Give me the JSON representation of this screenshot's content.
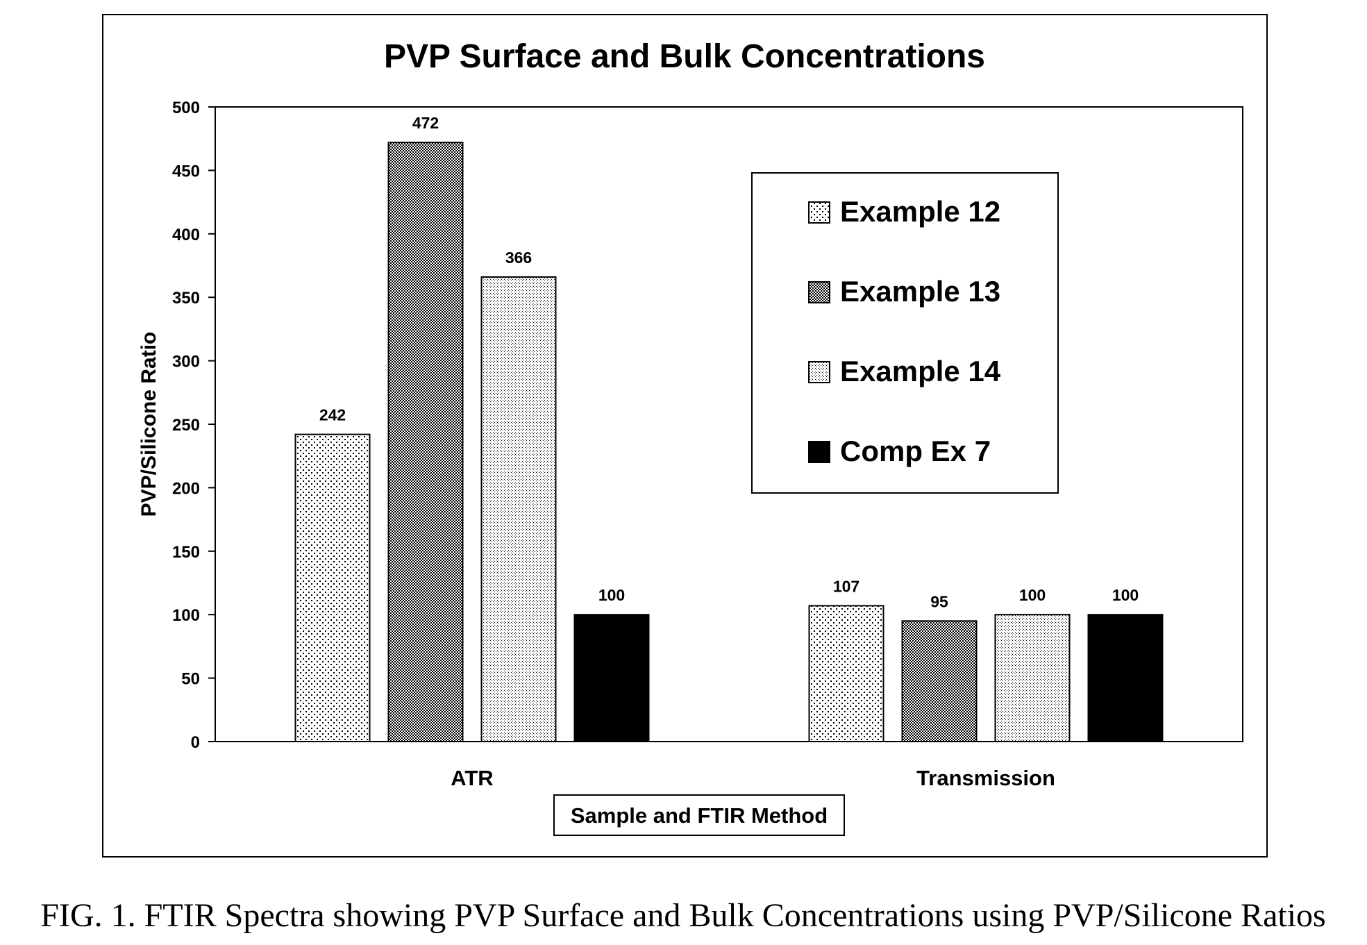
{
  "chart_data": {
    "type": "bar",
    "title": "PVP Surface and Bulk Concentrations",
    "xlabel": "Sample and FTIR Method",
    "ylabel": "PVP/Silicone Ratio",
    "ylim": [
      0,
      500
    ],
    "yticks": [
      0,
      50,
      100,
      150,
      200,
      250,
      300,
      350,
      400,
      450,
      500
    ],
    "categories": [
      "ATR",
      "Transmission"
    ],
    "series": [
      {
        "name": "Example 12",
        "values": [
          242,
          107
        ],
        "value_labels": [
          "242",
          "107"
        ],
        "fill": "sparse-dots"
      },
      {
        "name": "Example 13",
        "values": [
          472,
          95
        ],
        "value_labels": [
          "472",
          "95"
        ],
        "fill": "dense-checker"
      },
      {
        "name": "Example 14",
        "values": [
          366,
          100
        ],
        "value_labels": [
          "366",
          "100"
        ],
        "fill": "fine-dots"
      },
      {
        "name": "Comp Ex 7",
        "values": [
          100,
          100
        ],
        "value_labels": [
          "100",
          "100"
        ],
        "fill": "solid-black"
      }
    ],
    "legend_position": "top-right",
    "grid": false,
    "colors": {
      "axis": "#000000",
      "solid": "#000000",
      "background": "#ffffff"
    }
  },
  "caption": "FIG. 1. FTIR Spectra showing PVP Surface and Bulk Concentrations using PVP/Silicone Ratios"
}
